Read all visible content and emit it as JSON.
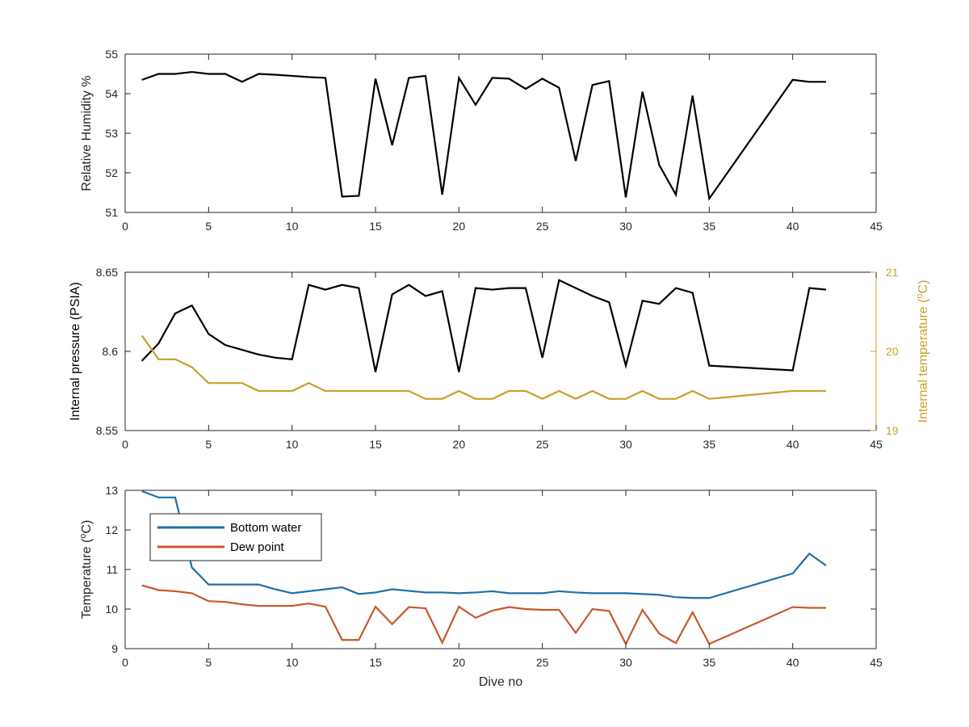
{
  "chart_data": [
    {
      "type": "line",
      "xlabel": "",
      "ylabel": "Relative Humidity %",
      "xlim": [
        0,
        45
      ],
      "ylim": [
        51,
        55
      ],
      "xticks": [
        0,
        5,
        10,
        15,
        20,
        25,
        30,
        35,
        40,
        45
      ],
      "yticks": [
        51,
        52,
        53,
        54,
        55
      ],
      "grid": false,
      "series": [
        {
          "color": "#000000",
          "x": [
            1,
            2,
            3,
            4,
            5,
            6,
            7,
            8,
            9,
            10,
            11,
            12,
            13,
            14,
            15,
            16,
            17,
            18,
            19,
            20,
            21,
            22,
            23,
            24,
            25,
            26,
            27,
            28,
            29,
            30,
            31,
            32,
            33,
            34,
            35,
            40,
            41,
            42
          ],
          "y": [
            54.35,
            54.5,
            54.5,
            54.55,
            54.5,
            54.5,
            54.3,
            54.5,
            54.48,
            54.45,
            54.42,
            54.4,
            51.4,
            51.42,
            54.38,
            52.7,
            54.4,
            54.45,
            51.45,
            54.4,
            53.72,
            54.4,
            54.38,
            54.12,
            54.38,
            54.15,
            52.3,
            54.22,
            54.32,
            51.38,
            54.05,
            52.2,
            51.45,
            53.95,
            51.35,
            54.35,
            54.3,
            54.3
          ]
        }
      ]
    },
    {
      "type": "line",
      "xlabel": "",
      "ylabel": "Internal pressure (PSIA)",
      "ylabel_right": "Internal temperature (°C)",
      "xlim": [
        0,
        45
      ],
      "ylim": [
        8.55,
        8.65
      ],
      "ylim_right": [
        19,
        21
      ],
      "xticks": [
        0,
        5,
        10,
        15,
        20,
        25,
        30,
        35,
        40,
        45
      ],
      "yticks": [
        "8.55",
        "8.6",
        "8.65"
      ],
      "yticks_right": [
        19,
        20,
        21
      ],
      "grid": false,
      "series": [
        {
          "axis": "left",
          "color": "#000000",
          "x": [
            1,
            2,
            3,
            4,
            5,
            6,
            7,
            8,
            9,
            10,
            11,
            12,
            13,
            14,
            15,
            16,
            17,
            18,
            19,
            20,
            21,
            22,
            23,
            24,
            25,
            26,
            27,
            28,
            29,
            30,
            31,
            32,
            33,
            34,
            35,
            40,
            41,
            42
          ],
          "y": [
            8.594,
            8.605,
            8.624,
            8.629,
            8.611,
            8.604,
            8.601,
            8.598,
            8.596,
            8.595,
            8.642,
            8.639,
            8.642,
            8.64,
            8.587,
            8.636,
            8.642,
            8.635,
            8.638,
            8.587,
            8.64,
            8.639,
            8.64,
            8.64,
            8.596,
            8.645,
            8.64,
            8.635,
            8.631,
            8.591,
            8.632,
            8.63,
            8.64,
            8.637,
            8.591,
            8.588,
            8.64,
            8.639
          ]
        },
        {
          "axis": "right",
          "color": "#C8A02A",
          "x": [
            1,
            2,
            3,
            4,
            5,
            6,
            7,
            8,
            9,
            10,
            11,
            12,
            13,
            14,
            15,
            16,
            17,
            18,
            19,
            20,
            21,
            22,
            23,
            24,
            25,
            26,
            27,
            28,
            29,
            30,
            31,
            32,
            33,
            34,
            35,
            40,
            41,
            42
          ],
          "y": [
            20.2,
            19.9,
            19.9,
            19.8,
            19.6,
            19.6,
            19.6,
            19.5,
            19.5,
            19.5,
            19.6,
            19.5,
            19.5,
            19.5,
            19.5,
            19.5,
            19.5,
            19.4,
            19.4,
            19.5,
            19.4,
            19.4,
            19.5,
            19.5,
            19.4,
            19.5,
            19.4,
            19.5,
            19.4,
            19.4,
            19.5,
            19.4,
            19.4,
            19.5,
            19.4,
            19.5,
            19.5,
            19.5
          ]
        }
      ]
    },
    {
      "type": "line",
      "xlabel": "Dive no",
      "ylabel": "Temperature (°C)",
      "xlim": [
        0,
        45
      ],
      "ylim": [
        9,
        13
      ],
      "xticks": [
        0,
        5,
        10,
        15,
        20,
        25,
        30,
        35,
        40,
        45
      ],
      "yticks": [
        9,
        10,
        11,
        12,
        13
      ],
      "grid": false,
      "legend": "top-left",
      "series": [
        {
          "name": "Bottom water",
          "color": "#1F6FA8",
          "x": [
            1,
            2,
            3,
            4,
            5,
            6,
            7,
            8,
            9,
            10,
            11,
            12,
            13,
            14,
            15,
            16,
            17,
            18,
            19,
            20,
            21,
            22,
            23,
            24,
            25,
            26,
            27,
            28,
            29,
            30,
            31,
            32,
            33,
            34,
            35,
            40,
            41,
            42
          ],
          "y": [
            12.98,
            12.82,
            12.82,
            11.05,
            10.62,
            10.62,
            10.62,
            10.62,
            10.5,
            10.4,
            10.45,
            10.5,
            10.55,
            10.38,
            10.42,
            10.5,
            10.46,
            10.42,
            10.42,
            10.4,
            10.42,
            10.45,
            10.4,
            10.4,
            10.4,
            10.45,
            10.42,
            10.4,
            10.4,
            10.4,
            10.38,
            10.36,
            10.3,
            10.28,
            10.28,
            10.9,
            11.4,
            11.1
          ]
        },
        {
          "name": "Dew point",
          "color": "#C8582A",
          "x": [
            1,
            2,
            3,
            4,
            5,
            6,
            7,
            8,
            9,
            10,
            11,
            12,
            13,
            14,
            15,
            16,
            17,
            18,
            19,
            20,
            21,
            22,
            23,
            24,
            25,
            26,
            27,
            28,
            29,
            30,
            31,
            32,
            33,
            34,
            35,
            40,
            41,
            42
          ],
          "y": [
            10.6,
            10.48,
            10.45,
            10.4,
            10.2,
            10.18,
            10.12,
            10.08,
            10.08,
            10.08,
            10.14,
            10.06,
            9.22,
            9.22,
            10.06,
            9.62,
            10.05,
            10.02,
            9.15,
            10.06,
            9.78,
            9.96,
            10.05,
            10.0,
            9.98,
            9.98,
            9.4,
            10.0,
            9.95,
            9.12,
            9.98,
            9.38,
            9.14,
            9.92,
            9.12,
            10.05,
            10.03,
            10.03
          ]
        }
      ]
    }
  ]
}
